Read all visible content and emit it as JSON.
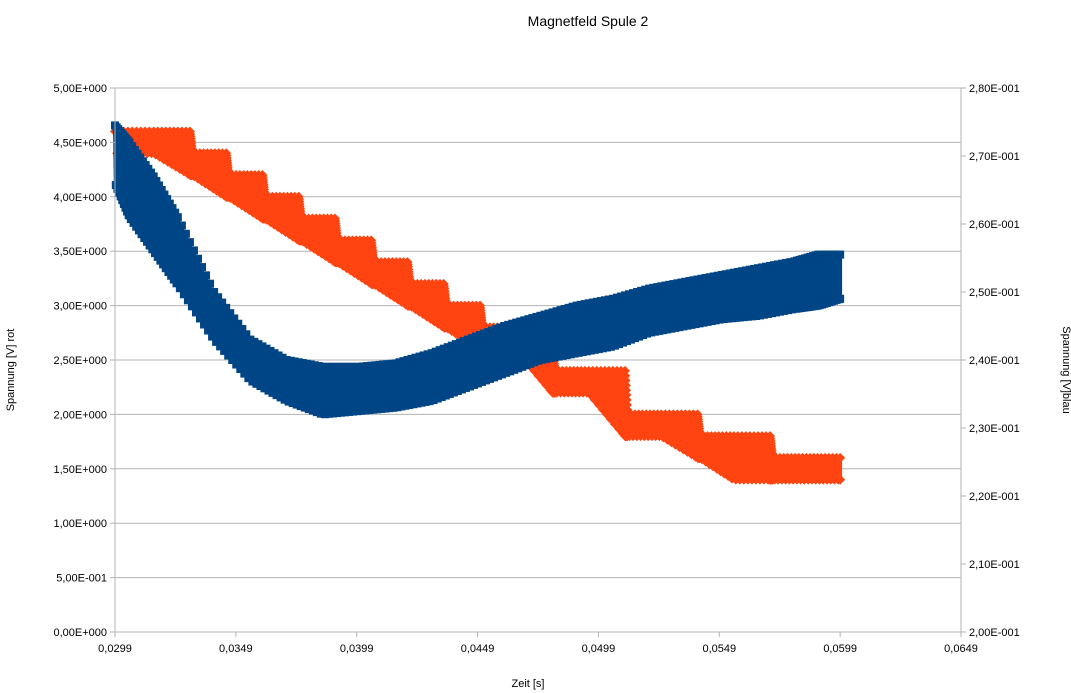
{
  "chart_data": {
    "type": "scatter",
    "title": "Magnetfeld Spule 2",
    "xlabel": "Zeit [s]",
    "ylabel_left": "Spannung [V] rot",
    "ylabel_right": "Spannung [V]blau",
    "xlim": [
      0.0299,
      0.0649
    ],
    "x_ticks": [
      "0,0299",
      "0,0349",
      "0,0399",
      "0,0449",
      "0,0499",
      "0,0549",
      "0,0599",
      "0,0649"
    ],
    "ylim_left": [
      0,
      5
    ],
    "y_ticks_left": [
      "0,00E+000",
      "5,00E-001",
      "1,00E+000",
      "1,50E+000",
      "2,00E+000",
      "2,50E+000",
      "3,00E+000",
      "3,50E+000",
      "4,00E+000",
      "4,50E+000",
      "5,00E+000"
    ],
    "ylim_right": [
      0.2,
      0.28
    ],
    "y_ticks_right": [
      "2,00E-001",
      "2,10E-001",
      "2,20E-001",
      "2,30E-001",
      "2,40E-001",
      "2,50E-001",
      "2,60E-001",
      "2,70E-001",
      "2,80E-001"
    ],
    "grid": true,
    "series": [
      {
        "axis": "left",
        "color": "#ff4411",
        "marker": "diamond",
        "x": [
          0.0299,
          0.0315,
          0.033,
          0.0331,
          0.0345,
          0.0346,
          0.036,
          0.0361,
          0.0375,
          0.0376,
          0.039,
          0.0391,
          0.0405,
          0.0406,
          0.042,
          0.0421,
          0.0435,
          0.0436,
          0.045,
          0.0451,
          0.0465,
          0.048,
          0.0481,
          0.0495,
          0.051,
          0.0511,
          0.0525,
          0.054,
          0.0541,
          0.0555,
          0.057,
          0.0571,
          0.0585,
          0.0599
        ],
        "ymin": [
          4.4,
          4.4,
          4.2,
          4.2,
          4.0,
          4.0,
          3.8,
          3.8,
          3.6,
          3.6,
          3.4,
          3.4,
          3.2,
          3.2,
          3.0,
          3.0,
          2.8,
          2.8,
          2.6,
          2.6,
          2.6,
          2.2,
          2.2,
          2.2,
          1.8,
          1.8,
          1.8,
          1.6,
          1.6,
          1.4,
          1.4,
          1.4,
          1.4,
          1.4
        ],
        "ymax": [
          4.6,
          4.6,
          4.6,
          4.4,
          4.4,
          4.2,
          4.2,
          4.0,
          4.0,
          3.8,
          3.8,
          3.6,
          3.6,
          3.4,
          3.4,
          3.2,
          3.2,
          3.0,
          3.0,
          2.8,
          2.8,
          2.6,
          2.4,
          2.4,
          2.4,
          2.0,
          2.0,
          2.0,
          1.8,
          1.8,
          1.8,
          1.6,
          1.6,
          1.6
        ]
      },
      {
        "axis": "right",
        "color": "#004586",
        "marker": "square",
        "x": [
          0.0299,
          0.0305,
          0.0315,
          0.0325,
          0.034,
          0.0355,
          0.037,
          0.0385,
          0.04,
          0.0415,
          0.043,
          0.0445,
          0.046,
          0.0475,
          0.049,
          0.0505,
          0.052,
          0.0535,
          0.055,
          0.0565,
          0.058,
          0.059,
          0.0599
        ],
        "ymin": [
          0.266,
          0.261,
          0.256,
          0.251,
          0.243,
          0.237,
          0.234,
          0.232,
          0.2325,
          0.233,
          0.234,
          0.236,
          0.238,
          0.24,
          0.241,
          0.242,
          0.244,
          0.245,
          0.246,
          0.2465,
          0.2475,
          0.248,
          0.249
        ],
        "ymax": [
          0.2745,
          0.272,
          0.267,
          0.261,
          0.25,
          0.243,
          0.24,
          0.239,
          0.239,
          0.2395,
          0.241,
          0.243,
          0.245,
          0.2465,
          0.248,
          0.249,
          0.2505,
          0.2515,
          0.2525,
          0.2535,
          0.2545,
          0.2555,
          0.2555
        ]
      }
    ]
  }
}
